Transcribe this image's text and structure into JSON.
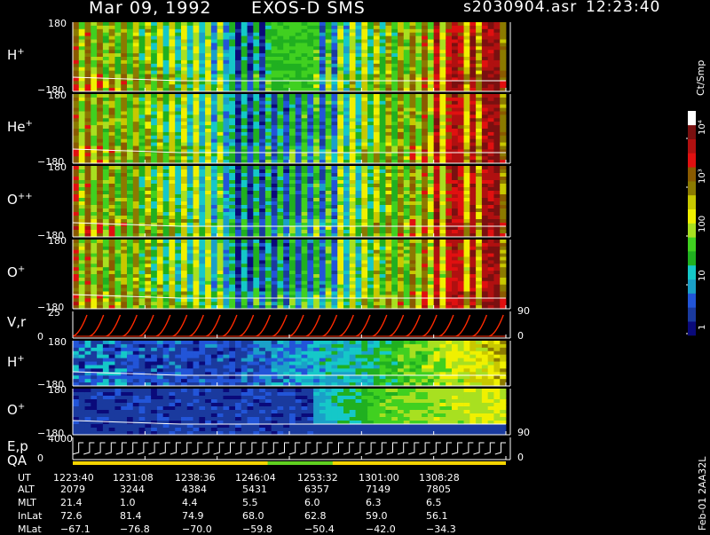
{
  "header": {
    "date": "Mar 09, 1992",
    "mission": "EXOS-D SMS",
    "file": "s2030904.asr",
    "time": "12:23:40"
  },
  "colors": {
    "background": "#000000",
    "text": "#ffffff",
    "velocity_trace": "#ff2a00",
    "qa_bar": "#f4d400",
    "colorbar_stops": [
      "#0a0a7a",
      "#1a3a9e",
      "#2255d8",
      "#1aa0c8",
      "#15c8c8",
      "#20b020",
      "#40d020",
      "#a8e020",
      "#f0f000",
      "#c8c800",
      "#8b7a00",
      "#8a5a00",
      "#e01010",
      "#b01010",
      "#7a1010",
      "#ffffff"
    ]
  },
  "colorbar": {
    "unit": "Ct/Smp",
    "ticks": [
      "1",
      "10",
      "100",
      "10³",
      "10⁴"
    ],
    "scale": "log"
  },
  "chart_data": {
    "type": "heatmap",
    "x_ut": [
      "1223:40",
      "1231:08",
      "1238:36",
      "1246:04",
      "1253:32",
      "1301:00",
      "1308:28"
    ],
    "panels": [
      {
        "label": "H",
        "sup": "+",
        "ymax": "180",
        "ymin": "−180",
        "right": ""
      },
      {
        "label": "He",
        "sup": "+",
        "ymax": "180",
        "ymin": "−180",
        "right": ""
      },
      {
        "label": "O",
        "sup": "++",
        "ymax": "180",
        "ymin": "−180",
        "right": ""
      },
      {
        "label": "O",
        "sup": "+",
        "ymax": "180",
        "ymin": "−180",
        "right": ""
      },
      {
        "label": "V,r",
        "sup": "",
        "ymax": "25",
        "ymin": "0",
        "right_top": "90",
        "right_bottom": "0"
      },
      {
        "label": "H",
        "sup": "+",
        "ymax": "180",
        "ymin": "−180",
        "right": ""
      },
      {
        "label": "O",
        "sup": "+",
        "ymax": "180",
        "ymin": "−180",
        "right": "90"
      },
      {
        "label": "E,p",
        "label2": "QA",
        "ymax": "4000",
        "ymin": "0",
        "right": "0"
      }
    ],
    "ephemeris": {
      "rows": [
        "UT",
        "ALT",
        "MLT",
        "InLat",
        "MLat"
      ],
      "values": [
        [
          "1223:40",
          "1231:08",
          "1238:36",
          "1246:04",
          "1253:32",
          "1301:00",
          "1308:28"
        ],
        [
          "2079",
          "3244",
          "4384",
          "5431",
          "6357",
          "7149",
          "7805"
        ],
        [
          "21.4",
          "1.0",
          "4.4",
          "5.5",
          "6.0",
          "6.3",
          "6.5"
        ],
        [
          "72.6",
          "81.4",
          "74.9",
          "68.0",
          "62.8",
          "59.0",
          "56.1"
        ],
        [
          "−67.1",
          "−76.8",
          "−70.0",
          "−59.8",
          "−50.4",
          "−42.0",
          "−34.3"
        ]
      ]
    }
  },
  "footer_code": "Feb-01 2AA32L"
}
